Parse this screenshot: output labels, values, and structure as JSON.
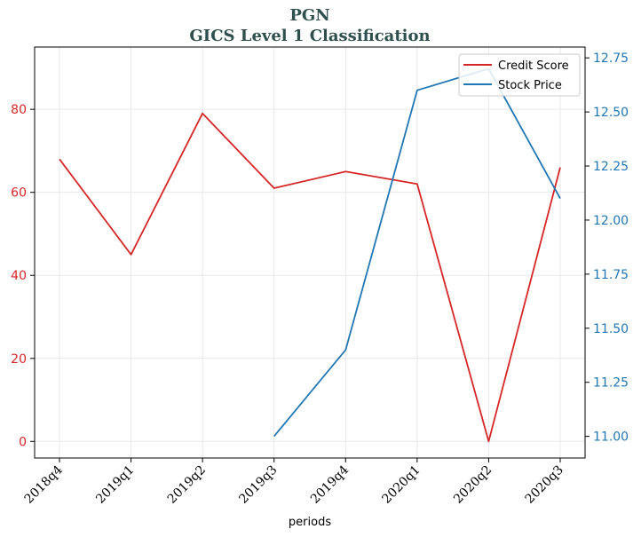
{
  "chart_data": {
    "type": "line",
    "title": "PGN",
    "subtitle": "GICS Level 1 Classification",
    "xlabel": "periods",
    "categories": [
      "2018q4",
      "2019q1",
      "2019q2",
      "2019q3",
      "2019q4",
      "2020q1",
      "2020q2",
      "2020q3"
    ],
    "y_left": {
      "ylim": [
        -4,
        95
      ],
      "ticks": [
        0,
        20,
        40,
        60,
        80
      ],
      "color": "#d62728"
    },
    "y_right": {
      "ylim": [
        10.9,
        12.8
      ],
      "ticks": [
        "11.00",
        "11.25",
        "11.50",
        "11.75",
        "12.00",
        "12.25",
        "12.50",
        "12.75"
      ],
      "color": "#1f77b4"
    },
    "series": [
      {
        "name": "Credit Score",
        "axis": "left",
        "color": "#d62728",
        "values": [
          68,
          45,
          79,
          61,
          65,
          62,
          0,
          66
        ]
      },
      {
        "name": "Stock Price",
        "axis": "right",
        "color": "#1f77b4",
        "values": [
          null,
          null,
          null,
          11.0,
          11.4,
          12.6,
          12.7,
          12.1
        ]
      }
    ],
    "grid": true,
    "legend": "top-right"
  }
}
